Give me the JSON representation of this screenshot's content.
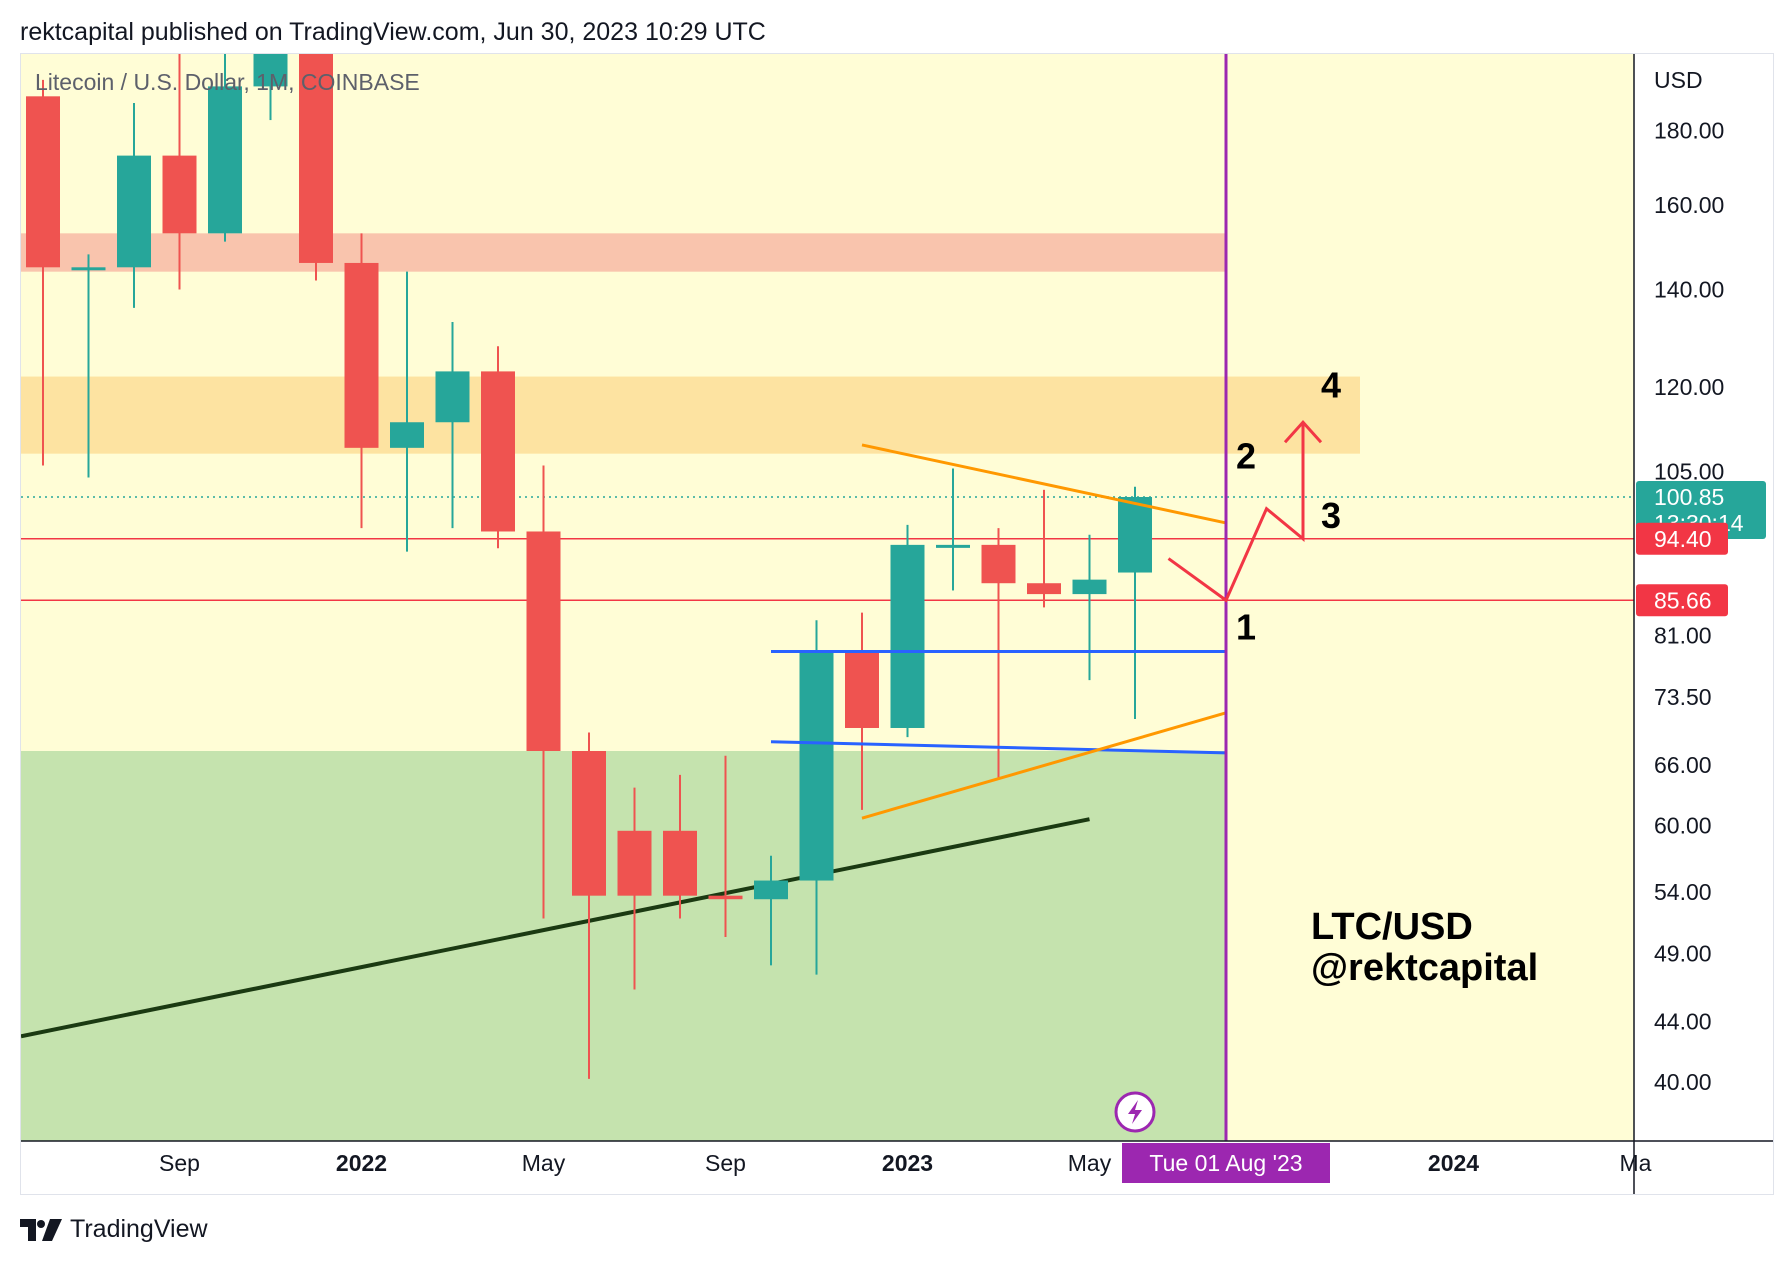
{
  "header": {
    "published_text": "rektcapital published on TradingView.com, Jun 30, 2023 10:29 UTC"
  },
  "footer": {
    "brand": "TradingView"
  },
  "colors": {
    "up": "#26a69a",
    "down": "#ef5350",
    "background": "#fffdd6",
    "green_zone": "#c5e3ae",
    "pink_zone": "#f9c4ad",
    "orange_zone": "#fde3a1",
    "purple": "#9c27b0",
    "blue": "#2962ff",
    "orange_line": "#ff9800",
    "trend_line": "#1b3a12",
    "arrow": "#f23645"
  },
  "chart_data": {
    "type": "candlestick",
    "title": "Litecoin / U.S. Dollar, 1M, COINBASE",
    "watermark_line1": "LTC/USD",
    "watermark_line2": "@rektcapital",
    "y_axis": {
      "unit": "USD",
      "scale": "log",
      "ticks": [
        "180.00",
        "160.00",
        "140.00",
        "120.00",
        "105.00",
        "81.00",
        "73.50",
        "66.00",
        "60.00",
        "54.00",
        "49.00",
        "44.00",
        "40.00"
      ]
    },
    "x_axis": {
      "ticks": [
        {
          "label": "Sep",
          "year": false
        },
        {
          "label": "2022",
          "year": true
        },
        {
          "label": "May",
          "year": false
        },
        {
          "label": "Sep",
          "year": false
        },
        {
          "label": "2023",
          "year": true
        },
        {
          "label": "May",
          "year": false
        },
        {
          "label": "2024",
          "year": true
        },
        {
          "label": "Ma",
          "year": false
        }
      ],
      "crosshair_label": "Tue 01 Aug '23"
    },
    "price_labels": {
      "current_price": "100.85",
      "countdown": "13:30:14",
      "level_1": "94.40",
      "level_2": "85.66"
    },
    "candles": [
      {
        "t": "2021-06",
        "o": 190.0,
        "h": 195.0,
        "l": 106.0,
        "c": 145.0
      },
      {
        "t": "2021-07",
        "o": 145.0,
        "h": 148.0,
        "l": 104.0,
        "c": 145.0
      },
      {
        "t": "2021-08",
        "o": 145.0,
        "h": 188.0,
        "l": 136.0,
        "c": 173.0
      },
      {
        "t": "2021-09",
        "o": 173.0,
        "h": 215.0,
        "l": 140.0,
        "c": 153.0
      },
      {
        "t": "2021-10",
        "o": 153.0,
        "h": 215.0,
        "l": 151.0,
        "c": 193.0
      },
      {
        "t": "2021-11",
        "o": 193.0,
        "h": 215.0,
        "l": 183.0,
        "c": 215.0
      },
      {
        "t": "2021-12",
        "o": 215.0,
        "h": 215.0,
        "l": 142.0,
        "c": 146.0
      },
      {
        "t": "2022-01",
        "o": 146.0,
        "h": 153.0,
        "l": 96.0,
        "c": 109.0
      },
      {
        "t": "2022-02",
        "o": 109.0,
        "h": 144.0,
        "l": 92.5,
        "c": 113.5
      },
      {
        "t": "2022-03",
        "o": 113.5,
        "h": 133.0,
        "l": 96.0,
        "c": 123.0
      },
      {
        "t": "2022-04",
        "o": 123.0,
        "h": 128.0,
        "l": 93.0,
        "c": 95.5
      },
      {
        "t": "2022-05",
        "o": 95.5,
        "h": 106.0,
        "l": 51.8,
        "c": 67.5
      },
      {
        "t": "2022-06",
        "o": 67.5,
        "h": 69.5,
        "l": 40.2,
        "c": 53.7
      },
      {
        "t": "2022-07",
        "o": 59.5,
        "h": 63.7,
        "l": 46.3,
        "c": 53.7
      },
      {
        "t": "2022-08",
        "o": 59.5,
        "h": 65.0,
        "l": 51.8,
        "c": 53.7
      },
      {
        "t": "2022-09",
        "o": 53.7,
        "h": 67.0,
        "l": 50.3,
        "c": 53.4
      },
      {
        "t": "2022-10",
        "o": 53.4,
        "h": 57.2,
        "l": 48.1,
        "c": 55.0
      },
      {
        "t": "2022-11",
        "o": 55.0,
        "h": 83.0,
        "l": 47.4,
        "c": 79.0
      },
      {
        "t": "2022-12",
        "o": 79.0,
        "h": 84.0,
        "l": 61.5,
        "c": 70.0
      },
      {
        "t": "2023-01",
        "o": 70.0,
        "h": 96.5,
        "l": 69.0,
        "c": 93.5
      },
      {
        "t": "2023-02",
        "o": 93.5,
        "h": 105.5,
        "l": 87.0,
        "c": 93.5
      },
      {
        "t": "2023-03",
        "o": 93.5,
        "h": 96.0,
        "l": 64.5,
        "c": 88.0
      },
      {
        "t": "2023-04",
        "o": 88.0,
        "h": 102.0,
        "l": 84.7,
        "c": 86.5
      },
      {
        "t": "2023-05",
        "o": 86.5,
        "h": 95.0,
        "l": 75.5,
        "c": 88.5
      },
      {
        "t": "2023-06",
        "o": 89.5,
        "h": 102.5,
        "l": 71.0,
        "c": 100.85
      }
    ],
    "zones": [
      {
        "name": "resistance-zone-pink",
        "from": 144.0,
        "to": 153.0
      },
      {
        "name": "resistance-zone-orange",
        "from": 108.0,
        "to": 122.0
      },
      {
        "name": "support-zone-green",
        "from": 35.0,
        "to": 67.5
      }
    ],
    "levels": [
      {
        "name": "level-94-40",
        "price": 94.4
      },
      {
        "name": "level-85-66",
        "price": 85.66
      },
      {
        "name": "current-price-dotted",
        "price": 100.85
      }
    ],
    "trendlines": [
      {
        "name": "range-high-line",
        "from": {
          "t": "2022-10",
          "p": 79.0
        },
        "to": {
          "t": "2023-08",
          "p": 79.0
        }
      },
      {
        "name": "range-low-line",
        "from": {
          "t": "2022-10",
          "p": 68.5
        },
        "to": {
          "t": "2023-08",
          "p": 67.3
        }
      },
      {
        "name": "triangle-upper-line",
        "from": {
          "t": "2022-12",
          "p": 109.5
        },
        "to": {
          "t": "2023-08",
          "p": 96.8
        }
      },
      {
        "name": "triangle-lower-line",
        "from": {
          "t": "2022-12",
          "p": 60.7
        },
        "to": {
          "t": "2023-08",
          "p": 71.7
        }
      },
      {
        "name": "macro-uptrend-line",
        "from": {
          "t": "2021-06",
          "p": 43.0
        },
        "to": {
          "t": "2023-05",
          "p": 60.6
        }
      }
    ],
    "scenario_arrow": [
      {
        "t": "2023-07",
        "p": 91.5
      },
      {
        "t": "2023-08",
        "p": 85.66
      },
      {
        "t": "2023-09",
        "p": 99.0
      },
      {
        "t": "2023-10",
        "p": 94.4
      },
      {
        "t": "2023-10",
        "p": 113.5
      }
    ],
    "annotations": [
      {
        "text": "1",
        "t": "2023-08",
        "p": 80.5
      },
      {
        "text": "2",
        "t": "2023-08",
        "p": 105.5
      },
      {
        "text": "3",
        "t": "2023-10",
        "p": 96.0
      },
      {
        "text": "4",
        "t": "2023-10",
        "p": 118.0
      }
    ],
    "crosshair_time": "2023-08"
  }
}
